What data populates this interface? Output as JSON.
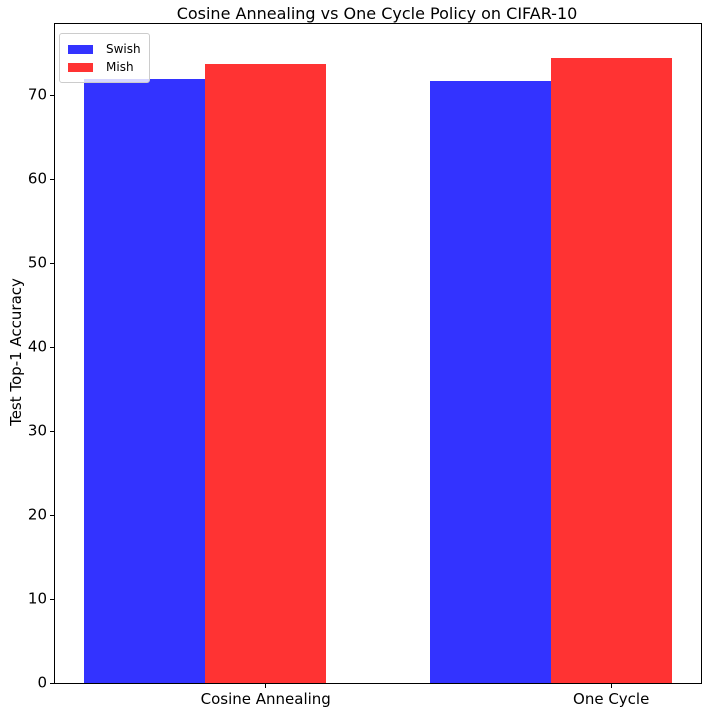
{
  "figure": {
    "background": "#ffffff",
    "text_color": "#000000",
    "spine_color": "#000000"
  },
  "title": "Cosine Annealing vs One Cycle Policy on CIFAR-10",
  "ylabel": "Test Top-1 Accuracy",
  "legend": {
    "position": "upper left",
    "items": [
      {
        "label": "Swish",
        "color": "#0000ff"
      },
      {
        "label": "Mish",
        "color": "#ff0000"
      }
    ]
  },
  "chart_data": {
    "type": "bar",
    "title": "Cosine Annealing vs One Cycle Policy on CIFAR-10",
    "xlabel": "",
    "ylabel": "Test Top-1 Accuracy",
    "categories": [
      "Cosine Annealing",
      "One Cycle"
    ],
    "series": [
      {
        "name": "Swish",
        "color": "#0000ff",
        "values": [
          72.0,
          71.7
        ]
      },
      {
        "name": "Mish",
        "color": "#ff0000",
        "values": [
          73.7,
          74.4
        ]
      }
    ],
    "bar_alpha": 0.8,
    "bar_width": 0.35,
    "group_positions": [
      0,
      1
    ],
    "series_offsets": [
      0,
      0.35
    ],
    "xtick_positions": [
      0.35,
      1.35
    ],
    "xlim": [
      -0.26,
      1.61
    ],
    "ylim": [
      0,
      78.5
    ],
    "yticks": [
      0,
      10,
      20,
      30,
      40,
      50,
      60,
      70
    ],
    "grid": false,
    "legend_position": "upper left"
  }
}
